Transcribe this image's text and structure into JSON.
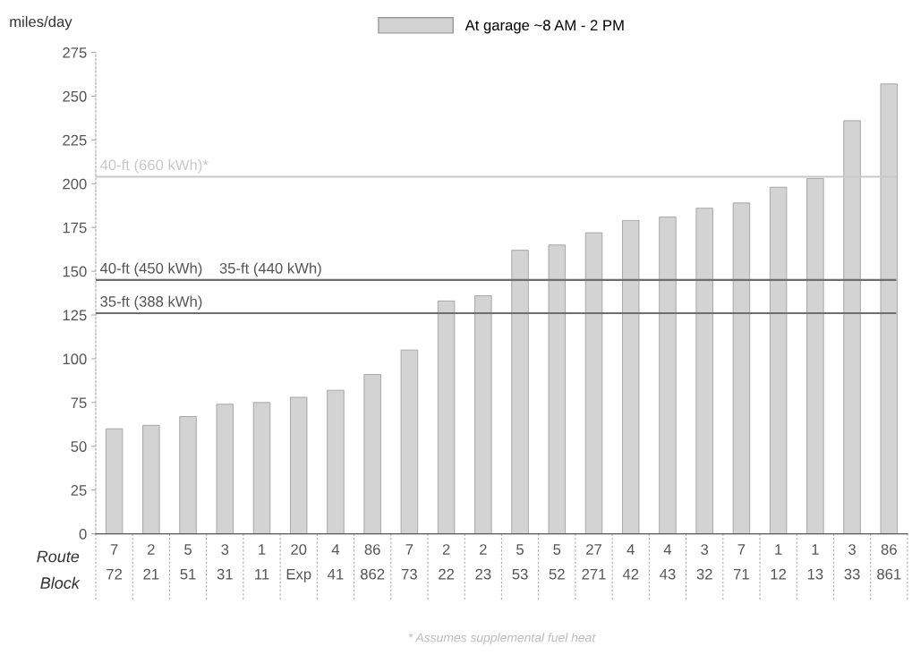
{
  "chart_data": {
    "type": "bar",
    "ylabel": "miles/day",
    "categories": [
      "7\n72",
      "2\n21",
      "5\n51",
      "3\n31",
      "1\n11",
      "20\nExp",
      "4\n41",
      "86\n862",
      "7\n73",
      "2\n22",
      "2\n23",
      "5\n53",
      "5\n52",
      "27\n271",
      "4\n42",
      "4\n43",
      "3\n32",
      "7\n71",
      "1\n12",
      "1\n13",
      "3\n33",
      "86\n861"
    ],
    "series": [
      {
        "name": "At garage ~8 AM - 2 PM",
        "color": "#d3d3d3",
        "values": [
          60,
          62,
          67,
          74,
          75,
          78,
          82,
          91,
          105,
          133,
          136,
          162,
          165,
          172,
          179,
          181,
          186,
          189,
          198,
          203,
          236,
          257
        ]
      }
    ],
    "ylim": [
      0,
      275
    ],
    "yticks": [
      0,
      25,
      50,
      75,
      100,
      125,
      150,
      175,
      200,
      225,
      250,
      275
    ],
    "ref_lines": [
      {
        "axis": "y",
        "value": 204,
        "label": "40-ft (660 kWh)*",
        "color": "#c8c8c8"
      },
      {
        "axis": "y",
        "value": 145,
        "label": "40-ft (450 kWh)    35-ft (440 kWh)",
        "color": "#6e6e6e"
      },
      {
        "axis": "y",
        "value": 126,
        "label": "35-ft (388 kWh)",
        "color": "#6e6e6e"
      }
    ],
    "annotations": [
      "Route",
      "Block",
      "* Assumes supplemental fuel heat"
    ],
    "legend": "top",
    "grid": false
  }
}
